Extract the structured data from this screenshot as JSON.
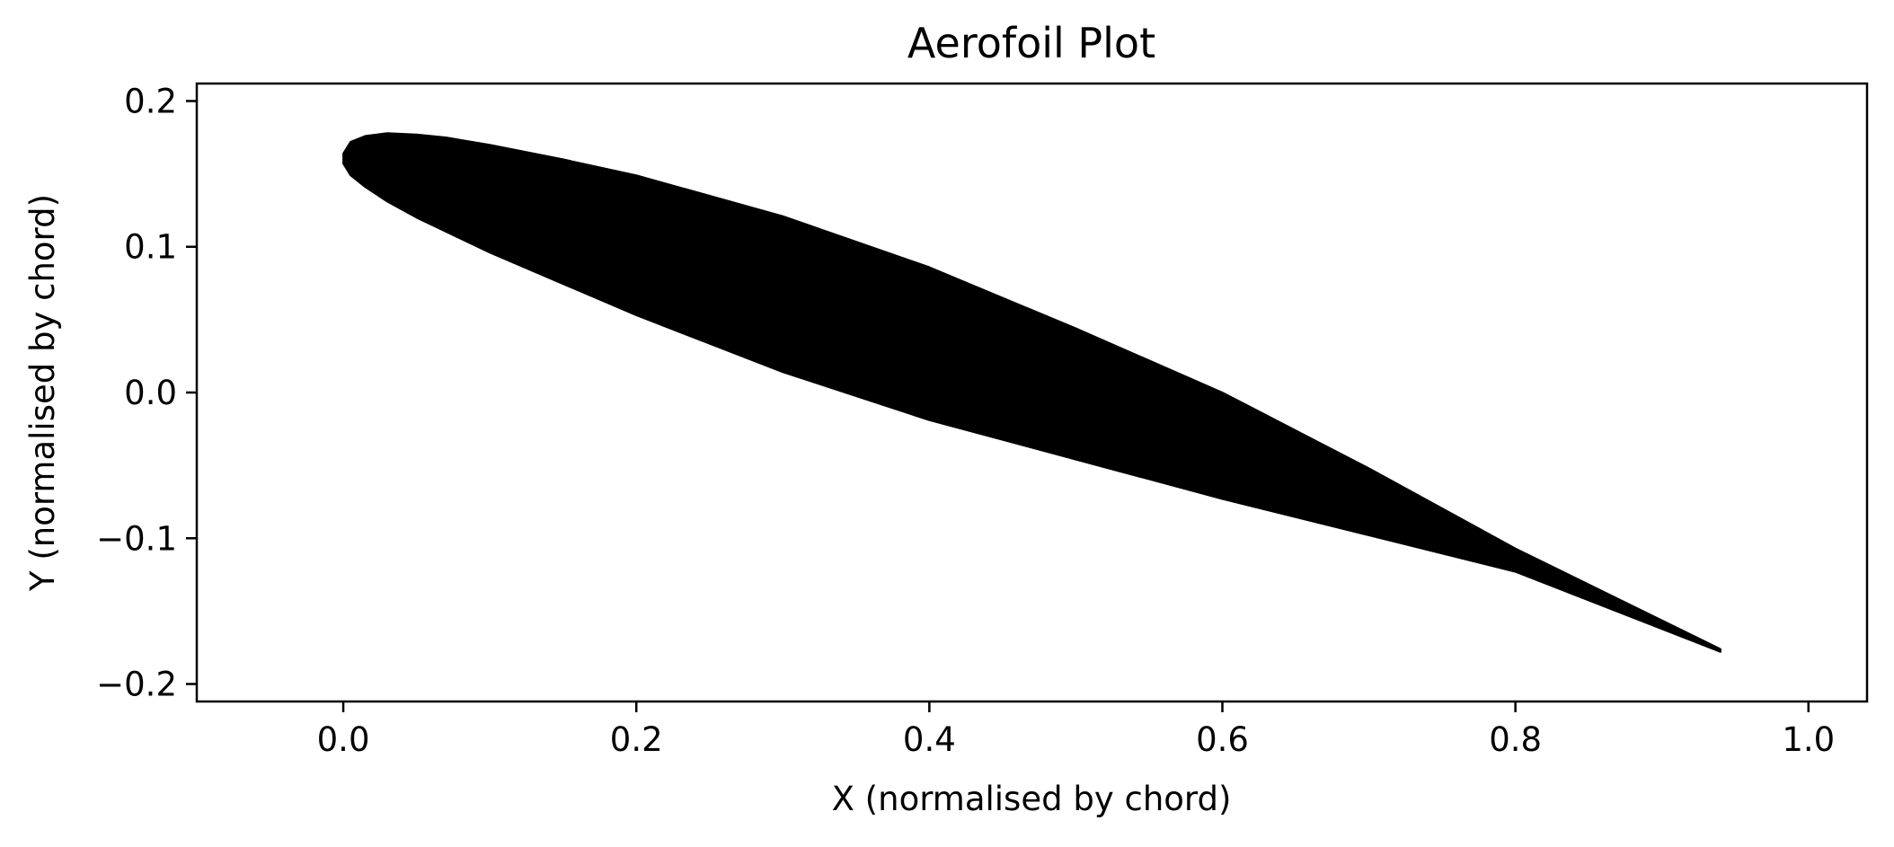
{
  "chart_data": {
    "type": "area",
    "title": "Aerofoil Plot",
    "xlabel": "X (normalised by chord)",
    "ylabel": "Y (normalised by chord)",
    "xlim": [
      -0.1,
      1.04
    ],
    "ylim": [
      -0.212,
      0.212
    ],
    "xticks": [
      0.0,
      0.2,
      0.4,
      0.6,
      0.8,
      1.0
    ],
    "xtick_labels": [
      "0.0",
      "0.2",
      "0.4",
      "0.6",
      "0.8",
      "1.0"
    ],
    "yticks": [
      0.2,
      0.1,
      0.0,
      -0.1,
      -0.2
    ],
    "ytick_labels": [
      "0.2",
      "0.1",
      "0.0",
      "−0.1",
      "−0.2"
    ],
    "grid": false,
    "fill_color": "#000000",
    "series": [
      {
        "x": [
          0.94,
          0.8,
          0.7,
          0.6,
          0.5,
          0.4,
          0.3,
          0.2,
          0.15,
          0.1,
          0.07,
          0.05,
          0.03,
          0.015,
          0.005,
          0.0,
          0.0,
          0.005,
          0.015,
          0.03,
          0.05,
          0.1,
          0.2,
          0.3,
          0.4,
          0.5,
          0.6,
          0.7,
          0.8,
          0.94
        ],
        "y": [
          -0.176,
          -0.107,
          -0.052,
          0.0,
          0.044,
          0.086,
          0.121,
          0.149,
          0.16,
          0.17,
          0.175,
          0.177,
          0.178,
          0.176,
          0.172,
          0.164,
          0.157,
          0.149,
          0.141,
          0.131,
          0.12,
          0.096,
          0.053,
          0.014,
          -0.019,
          -0.046,
          -0.073,
          -0.098,
          -0.123,
          -0.178
        ]
      }
    ]
  }
}
